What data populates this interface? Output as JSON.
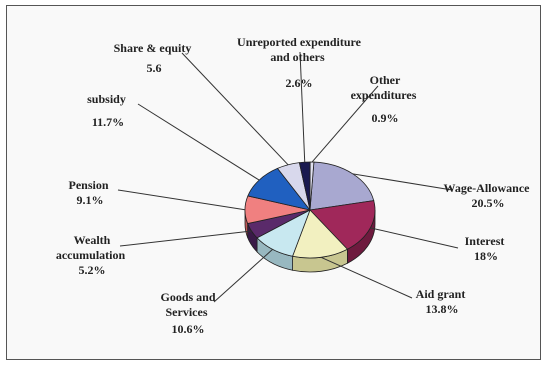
{
  "chart_data": {
    "type": "pie",
    "title": "",
    "slices": [
      {
        "label": "Wage-Allowance",
        "value_text": "20.5%",
        "value": 20.5,
        "color": "#a8a8d0",
        "side": "#7878a8"
      },
      {
        "label": "Interest",
        "value_text": "18%",
        "value": 18.0,
        "color": "#a0285a",
        "side": "#6e1a3e"
      },
      {
        "label": "Aid grant",
        "value_text": "13.8%",
        "value": 13.8,
        "color": "#f2f0c0",
        "side": "#c8c690"
      },
      {
        "label": "Goods and Services",
        "value_text": "10.6%",
        "value": 10.6,
        "color": "#c8e8f0",
        "side": "#98b8c0"
      },
      {
        "label": "Wealth accumulation",
        "value_text": "5.2%",
        "value": 5.2,
        "color": "#5a2a6a",
        "side": "#3a1a48"
      },
      {
        "label": "Pension",
        "value_text": "9.1%",
        "value": 9.1,
        "color": "#f08080",
        "side": "#c05858"
      },
      {
        "label": "subsidy",
        "value_text": "11.7%",
        "value": 11.7,
        "color": "#2060c0",
        "side": "#144090"
      },
      {
        "label": "Share & equity",
        "value_text": "5.6",
        "value": 5.6,
        "color": "#d8d8ec",
        "side": "#a8a8c0"
      },
      {
        "label": "Unreported expenditure and others",
        "value_text": "2.6%",
        "value": 2.6,
        "color": "#1a1a50",
        "side": "#0c0c30"
      },
      {
        "label": "Other expenditures",
        "value_text": "0.9%",
        "value": 0.9,
        "color": "#e0e0f0",
        "side": "#b0b0c8"
      }
    ]
  }
}
